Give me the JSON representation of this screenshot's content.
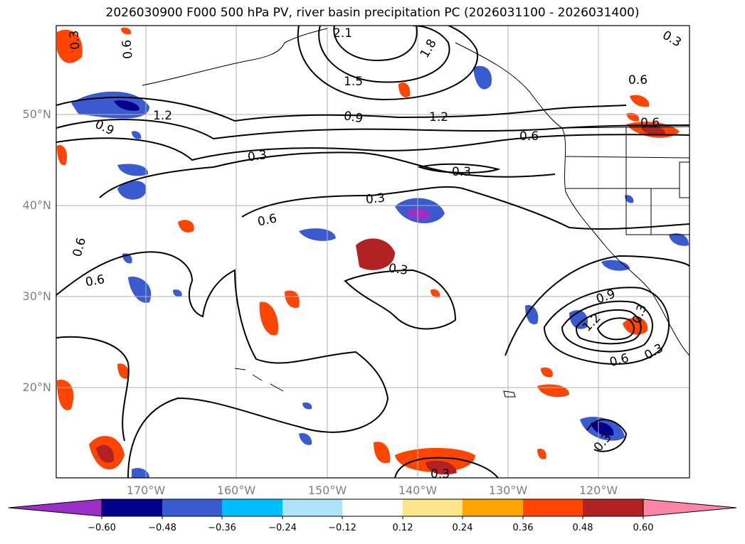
{
  "title": "2026030900 F000 500 hPa PV, river basin precipitation PC (2026031100 - 2026031400)",
  "lat_labels": [
    "50°N",
    "40°N",
    "30°N",
    "20°N"
  ],
  "lon_labels": [
    "170°W",
    "160°W",
    "150°W",
    "140°W",
    "130°W",
    "120°W"
  ],
  "contour_labels": [
    "2.1",
    "1.8",
    "1.5",
    "1.2",
    "1.2",
    "0.9",
    "0.9",
    "0.6",
    "0.6",
    "0.6",
    "0.6",
    "0.3",
    "0.3",
    "0.3",
    "0.3",
    "0.3",
    "0.3",
    "0.9",
    "1.2",
    "0.6",
    "0.3",
    "0.6",
    "0.3",
    "0.3",
    "0.6",
    "0.3",
    "0.6"
  ],
  "colorbar": {
    "ticks": [
      "−0.60",
      "−0.48",
      "−0.36",
      "−0.24",
      "−0.12",
      "0.12",
      "0.24",
      "0.36",
      "0.48",
      "0.60"
    ],
    "colors": [
      "#9b30c8",
      "#00008b",
      "#3a5bd0",
      "#00bfff",
      "#aee4fb",
      "#ffffff",
      "#fde68a",
      "#ffa500",
      "#ff4500",
      "#b22222",
      "#ff85a8"
    ]
  },
  "colors": {
    "grid": "#b0b0b0",
    "contour": "#000000",
    "tick_label": "#808080"
  }
}
